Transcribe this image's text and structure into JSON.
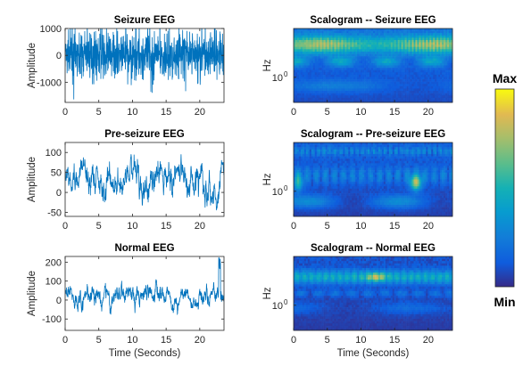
{
  "chart_data": [
    {
      "type": "line",
      "title": "Seizure EEG",
      "ylabel": "Amplitude",
      "xlabel": "",
      "xlim": [
        0,
        23.6
      ],
      "ylim": [
        -1750,
        1000
      ],
      "xticks": [
        0,
        5,
        10,
        15,
        20
      ],
      "yticks": [
        -1000,
        0,
        1000
      ],
      "series": [
        {
          "color": "#0072BD",
          "amplitude": 850,
          "signal": "dense high-amplitude oscillation"
        }
      ]
    },
    {
      "type": "line",
      "title": "Pre-seizure EEG",
      "ylabel": "Amplitude",
      "xlabel": "",
      "xlim": [
        0,
        23.6
      ],
      "ylim": [
        -60,
        125
      ],
      "xticks": [
        0,
        5,
        10,
        15,
        20
      ],
      "yticks": [
        -50,
        0,
        50,
        100
      ],
      "series": [
        {
          "color": "#0072BD",
          "amplitude": 55,
          "signal": "low-frequency irregular oscillation"
        }
      ]
    },
    {
      "type": "line",
      "title": "Normal EEG",
      "ylabel": "Amplitude",
      "xlabel": "Time (Seconds)",
      "xlim": [
        0,
        23.6
      ],
      "ylim": [
        -160,
        230
      ],
      "xticks": [
        0,
        5,
        10,
        15,
        20
      ],
      "yticks": [
        -100,
        0,
        100,
        200
      ],
      "series": [
        {
          "color": "#0072BD",
          "amplitude": 70,
          "signal": "irregular oscillation with spike near 23 s"
        }
      ]
    },
    {
      "type": "heatmap",
      "title": "Scalogram -- Seizure EEG",
      "ylabel": "Hz",
      "xlabel": "",
      "xlim": [
        0,
        23.6
      ],
      "xticks": [
        0,
        5,
        10,
        15,
        20
      ],
      "ytick_label": "10",
      "ytick_exponent": "0",
      "colormap": "parula",
      "energy": "bright band across upper frequencies"
    },
    {
      "type": "heatmap",
      "title": "Scalogram -- Pre-seizure EEG",
      "ylabel": "Hz",
      "xlabel": "",
      "xlim": [
        0,
        23.6
      ],
      "xticks": [
        0,
        5,
        10,
        15,
        20
      ],
      "ytick_label": "10",
      "ytick_exponent": "0",
      "colormap": "parula",
      "energy": "low-frequency band with yellow hotspot near 18 s"
    },
    {
      "type": "heatmap",
      "title": "Scalogram -- Normal EEG",
      "ylabel": "Hz",
      "xlabel": "Time (Seconds)",
      "xlim": [
        0,
        23.6
      ],
      "xticks": [
        0,
        5,
        10,
        15,
        20
      ],
      "ytick_label": "10",
      "ytick_exponent": "0",
      "colormap": "parula",
      "energy": "mid-frequency band brightest near 12 s"
    }
  ],
  "colorbar": {
    "max_label": "Max",
    "min_label": "Min"
  }
}
